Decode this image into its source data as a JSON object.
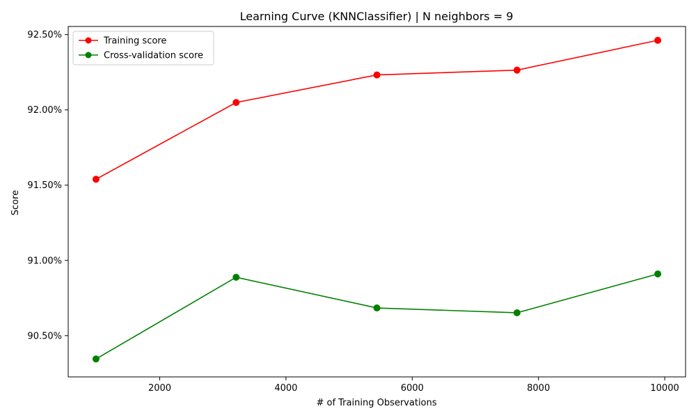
{
  "chart_data": {
    "type": "line",
    "title": "Learning Curve (KNNClassifier) | N neighbors = 9",
    "xlabel": "# of Training Observations",
    "ylabel": "Score",
    "x": [
      990,
      3210,
      5440,
      7660,
      9890
    ],
    "xlim": [
      550,
      10330
    ],
    "ylim": [
      0.90226,
      0.92554
    ],
    "x_ticks": [
      2000,
      4000,
      6000,
      8000,
      10000
    ],
    "x_tick_labels": [
      "2000",
      "4000",
      "6000",
      "8000",
      "10000"
    ],
    "y_ticks": [
      0.905,
      0.91,
      0.915,
      0.92,
      0.925
    ],
    "y_tick_labels": [
      "90.50%",
      "91.00%",
      "91.50%",
      "92.00%",
      "92.50%"
    ],
    "series": [
      {
        "name": "Training score",
        "color": "#ff0000",
        "marker": "circle",
        "values": [
          0.91539,
          0.92049,
          0.92232,
          0.92264,
          0.92462
        ]
      },
      {
        "name": "Cross-validation score",
        "color": "#008000",
        "marker": "circle",
        "values": [
          0.90345,
          0.90888,
          0.90684,
          0.90652,
          0.9091
        ]
      }
    ],
    "grid": false,
    "legend_position": "top-left"
  }
}
